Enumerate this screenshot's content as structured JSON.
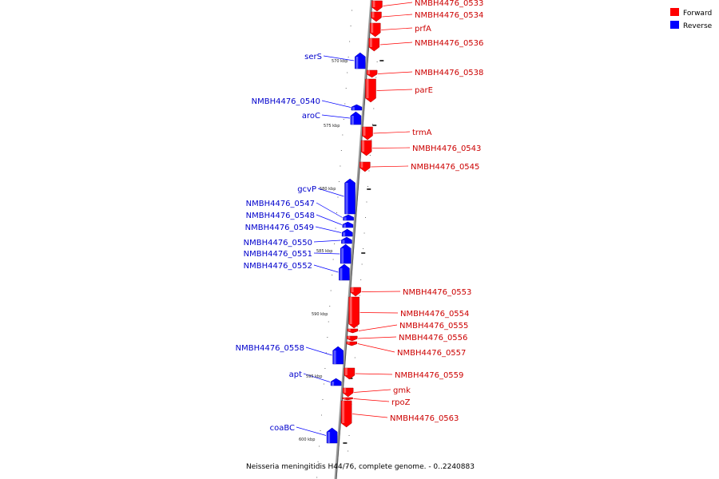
{
  "title": "Neisseria meningitidis H44/76, complete genome. - 0..2240883",
  "legend": [
    {
      "label": "Forward",
      "color": "#ff0000"
    },
    {
      "label": "Reverse",
      "color": "#0000ff"
    }
  ],
  "colors": {
    "forward": "#ff0000",
    "reverse": "#0000ff",
    "backbone": "#999999",
    "forward_label": "#cc0000",
    "reverse_label": "#0000cc"
  },
  "scale_labels": [
    "570 kbp",
    "575 kbp",
    "580 kbp",
    "585 kbp",
    "590 kbp",
    "595 kbp",
    "600 kbp"
  ],
  "chart_data": {
    "type": "genome-map",
    "genes": [
      {
        "name": "NMBH4476_0533",
        "strand": "forward"
      },
      {
        "name": "NMBH4476_0534",
        "strand": "forward"
      },
      {
        "name": "prfA",
        "strand": "forward"
      },
      {
        "name": "NMBH4476_0536",
        "strand": "forward"
      },
      {
        "name": "serS",
        "strand": "reverse"
      },
      {
        "name": "NMBH4476_0538",
        "strand": "forward"
      },
      {
        "name": "parE",
        "strand": "forward"
      },
      {
        "name": "NMBH4476_0540",
        "strand": "reverse"
      },
      {
        "name": "aroC",
        "strand": "reverse"
      },
      {
        "name": "trmA",
        "strand": "forward"
      },
      {
        "name": "NMBH4476_0543",
        "strand": "forward"
      },
      {
        "name": "NMBH4476_0545",
        "strand": "forward"
      },
      {
        "name": "gcvP",
        "strand": "reverse"
      },
      {
        "name": "NMBH4476_0547",
        "strand": "reverse"
      },
      {
        "name": "NMBH4476_0548",
        "strand": "reverse"
      },
      {
        "name": "NMBH4476_0549",
        "strand": "reverse"
      },
      {
        "name": "NMBH4476_0550",
        "strand": "reverse"
      },
      {
        "name": "NMBH4476_0551",
        "strand": "reverse"
      },
      {
        "name": "NMBH4476_0552",
        "strand": "reverse"
      },
      {
        "name": "NMBH4476_0553",
        "strand": "forward"
      },
      {
        "name": "NMBH4476_0554",
        "strand": "forward"
      },
      {
        "name": "NMBH4476_0555",
        "strand": "forward"
      },
      {
        "name": "NMBH4476_0556",
        "strand": "forward"
      },
      {
        "name": "NMBH4476_0557",
        "strand": "forward"
      },
      {
        "name": "NMBH4476_0558",
        "strand": "reverse"
      },
      {
        "name": "NMBH4476_0559",
        "strand": "forward"
      },
      {
        "name": "apt",
        "strand": "reverse"
      },
      {
        "name": "gmk",
        "strand": "forward"
      },
      {
        "name": "rpoZ",
        "strand": "forward"
      },
      {
        "name": "NMBH4476_0563",
        "strand": "forward"
      },
      {
        "name": "coaBC",
        "strand": "reverse"
      }
    ]
  }
}
